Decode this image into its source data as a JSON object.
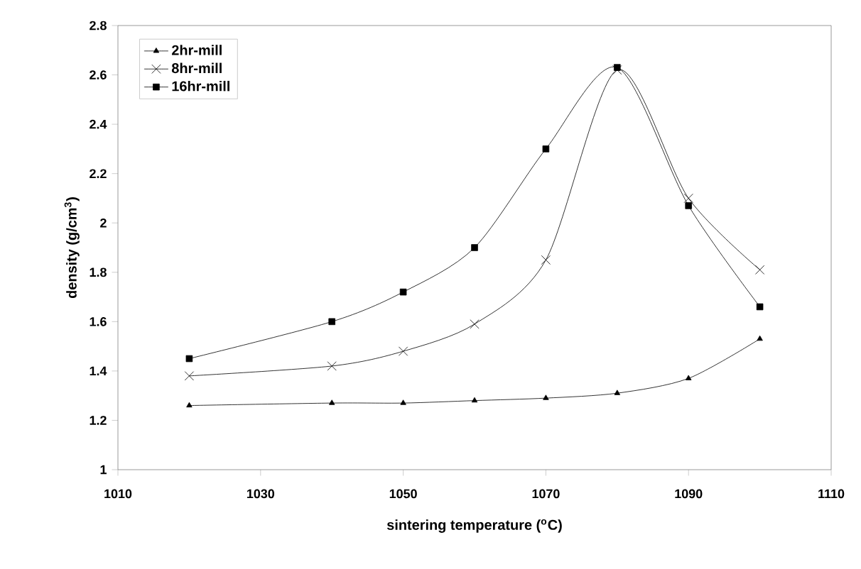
{
  "chart_data": {
    "type": "line",
    "xlabel": "sintering temperature ($^{o}$C)",
    "ylabel": "density (g/cm$^{3}$)",
    "x": [
      1020,
      1040,
      1050,
      1060,
      1070,
      1080,
      1090,
      1100
    ],
    "series": [
      {
        "name": "2hr-mill",
        "color": "#000000",
        "marker": "triangle",
        "values": [
          1.26,
          1.27,
          1.27,
          1.28,
          1.29,
          1.31,
          1.37,
          1.53
        ]
      },
      {
        "name": "8hr-mill",
        "color": "#000000",
        "marker": "cross",
        "values": [
          1.38,
          1.42,
          1.48,
          1.59,
          1.85,
          2.62,
          2.1,
          1.81
        ]
      },
      {
        "name": "16hr-mill",
        "color": "#000000",
        "marker": "square",
        "values": [
          1.45,
          1.6,
          1.72,
          1.9,
          2.3,
          2.63,
          2.07,
          1.66
        ]
      }
    ],
    "xlim": [
      1010,
      1110
    ],
    "xticks": [
      1010,
      1030,
      1050,
      1070,
      1090,
      1110
    ],
    "ylim": [
      1,
      2.8
    ],
    "yticks": [
      1,
      1.2,
      1.4,
      1.6,
      1.8,
      2,
      2.2,
      2.4,
      2.6,
      2.8
    ],
    "grid": false,
    "legend": "top left",
    "line_style": "solid"
  }
}
